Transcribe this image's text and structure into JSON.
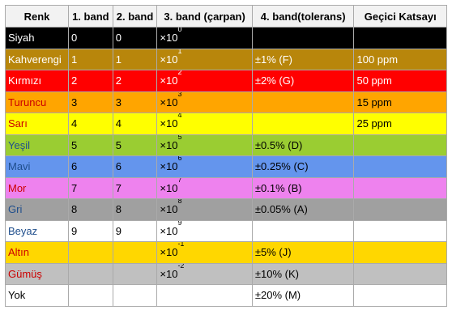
{
  "headers": [
    "Renk",
    "1. band",
    "2. band",
    "3. band (çarpan)",
    "4. band(tolerans)",
    "Geçici Katsayı"
  ],
  "rows": [
    {
      "name": "Siyah",
      "bg": "#000000",
      "fg": "#ffffff",
      "b1": "0",
      "b2": "0",
      "mult_exp": "0",
      "tolerance": "",
      "tempco": ""
    },
    {
      "name": "Kahverengi",
      "bg": "#b8860b",
      "fg": "#ffffff",
      "b1": "1",
      "b2": "1",
      "mult_exp": "1",
      "tolerance": "±1% (F)",
      "tempco": "100 ppm"
    },
    {
      "name": "Kırmızı",
      "bg": "#ff0000",
      "fg": "#ffffff",
      "b1": "2",
      "b2": "2",
      "mult_exp": "2",
      "tolerance": "±2% (G)",
      "tempco": "50 ppm"
    },
    {
      "name": "Turuncu",
      "bg": "#ffa500",
      "fg": "#cc0000",
      "b1": "3",
      "b2": "3",
      "mult_exp": "3",
      "tolerance": "",
      "tempco": "15 ppm"
    },
    {
      "name": "Sarı",
      "bg": "#ffff00",
      "fg": "#cc0000",
      "b1": "4",
      "b2": "4",
      "mult_exp": "4",
      "tolerance": "",
      "tempco": "25 ppm"
    },
    {
      "name": "Yeşil",
      "bg": "#9acd32",
      "fg": "#1f4e8c",
      "b1": "5",
      "b2": "5",
      "mult_exp": "5",
      "tolerance": "±0.5% (D)",
      "tempco": ""
    },
    {
      "name": "Mavi",
      "bg": "#6495ed",
      "fg": "#1f4e8c",
      "b1": "6",
      "b2": "6",
      "mult_exp": "6",
      "tolerance": "±0.25% (C)",
      "tempco": ""
    },
    {
      "name": "Mor",
      "bg": "#ee82ee",
      "fg": "#cc0000",
      "b1": "7",
      "b2": "7",
      "mult_exp": "7",
      "tolerance": "±0.1% (B)",
      "tempco": ""
    },
    {
      "name": "Gri",
      "bg": "#a0a0a0",
      "fg": "#1f4e8c",
      "b1": "8",
      "b2": "8",
      "mult_exp": "8",
      "tolerance": "±0.05% (A)",
      "tempco": ""
    },
    {
      "name": "Beyaz",
      "bg": "#ffffff",
      "fg": "#1f4e8c",
      "b1": "9",
      "b2": "9",
      "mult_exp": "9",
      "tolerance": "",
      "tempco": ""
    },
    {
      "name": "Altın",
      "bg": "#ffd700",
      "fg": "#cc0000",
      "b1": "",
      "b2": "",
      "mult_exp": "-1",
      "tolerance": "±5% (J)",
      "tempco": ""
    },
    {
      "name": "Gümüş",
      "bg": "#c0c0c0",
      "fg": "#cc0000",
      "b1": "",
      "b2": "",
      "mult_exp": "-2",
      "tolerance": "±10% (K)",
      "tempco": ""
    },
    {
      "name": "Yok",
      "bg": "#ffffff",
      "fg": "#000000",
      "b1": "",
      "b2": "",
      "mult_exp": "",
      "tolerance": "±20% (M)",
      "tempco": ""
    }
  ],
  "multiplier_prefix": "×10"
}
